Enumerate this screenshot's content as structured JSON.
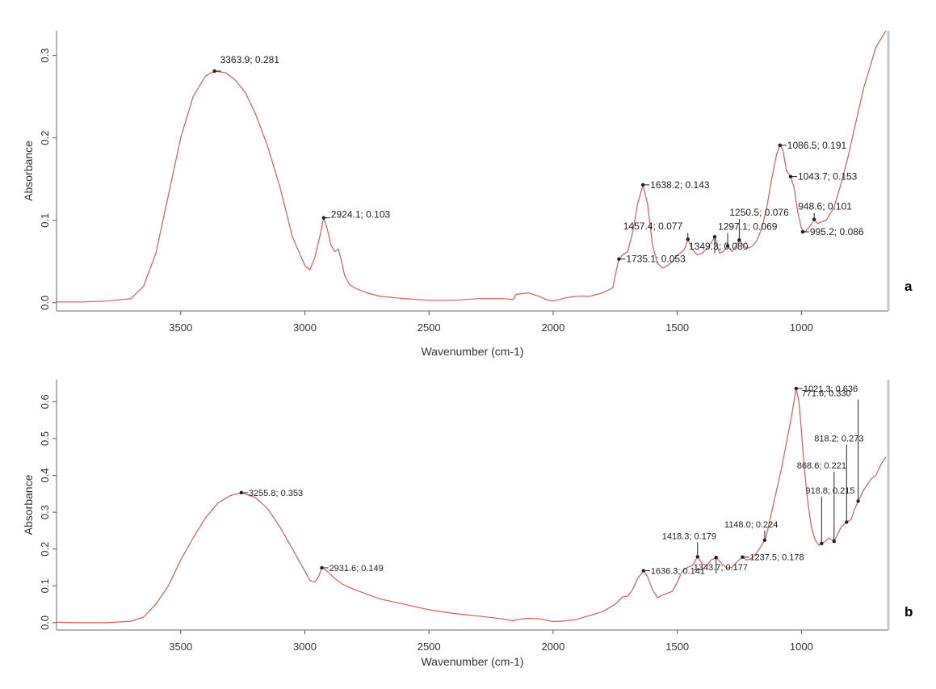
{
  "chart_data": [
    {
      "type": "line",
      "panel_label": "a",
      "xlabel": "Wavenumber (cm-1)",
      "ylabel": "Absorbance",
      "xlim": [
        4000,
        650
      ],
      "ylim": [
        -0.01,
        0.33
      ],
      "x_ticks": [
        3500,
        3000,
        2500,
        2000,
        1500,
        1000
      ],
      "y_ticks": [
        {
          "value": 0.0,
          "label": "0.0"
        },
        {
          "value": 0.1,
          "label": "0.1"
        },
        {
          "value": 0.2,
          "label": "0.2"
        },
        {
          "value": 0.3,
          "label": "0.3"
        }
      ],
      "line_color": "#e05a5a",
      "series": [
        {
          "x": [
            4000,
            3900,
            3800,
            3700,
            3650,
            3600,
            3550,
            3500,
            3450,
            3400,
            3363.9,
            3320,
            3280,
            3240,
            3200,
            3150,
            3100,
            3050,
            3000,
            2980,
            2960,
            2940,
            2924.1,
            2910,
            2895,
            2880,
            2865,
            2852,
            2840,
            2820,
            2800,
            2750,
            2700,
            2600,
            2500,
            2400,
            2300,
            2200,
            2160,
            2150,
            2100,
            2050,
            2030,
            2000,
            1950,
            1900,
            1850,
            1800,
            1760,
            1745,
            1735.1,
            1720,
            1700,
            1680,
            1660,
            1638.2,
            1620,
            1600,
            1580,
            1560,
            1540,
            1520,
            1500,
            1480,
            1470,
            1457.4,
            1440,
            1420,
            1400,
            1380,
            1365,
            1349.3,
            1330,
            1315,
            1297.1,
            1280,
            1265,
            1250.5,
            1235,
            1220,
            1200,
            1180,
            1160,
            1140,
            1120,
            1100,
            1086.5,
            1075,
            1060,
            1043.7,
            1030,
            1015,
            1000,
            995.2,
            985,
            960,
            948.6,
            935,
            920,
            900,
            870,
            840,
            810,
            780,
            750,
            720,
            700,
            680,
            660
          ],
          "y": [
            0.001,
            0.001,
            0.002,
            0.005,
            0.02,
            0.06,
            0.13,
            0.2,
            0.25,
            0.275,
            0.281,
            0.279,
            0.27,
            0.255,
            0.23,
            0.19,
            0.14,
            0.08,
            0.045,
            0.04,
            0.055,
            0.08,
            0.103,
            0.09,
            0.07,
            0.062,
            0.065,
            0.05,
            0.033,
            0.022,
            0.018,
            0.012,
            0.008,
            0.005,
            0.003,
            0.003,
            0.005,
            0.005,
            0.004,
            0.01,
            0.012,
            0.007,
            0.004,
            0.002,
            0.006,
            0.008,
            0.008,
            0.012,
            0.018,
            0.04,
            0.053,
            0.058,
            0.062,
            0.085,
            0.12,
            0.143,
            0.12,
            0.07,
            0.048,
            0.042,
            0.045,
            0.05,
            0.058,
            0.062,
            0.066,
            0.077,
            0.065,
            0.058,
            0.06,
            0.066,
            0.072,
            0.08,
            0.06,
            0.062,
            0.069,
            0.062,
            0.068,
            0.076,
            0.07,
            0.066,
            0.068,
            0.075,
            0.09,
            0.115,
            0.15,
            0.18,
            0.191,
            0.186,
            0.16,
            0.153,
            0.14,
            0.11,
            0.09,
            0.088,
            0.086,
            0.095,
            0.101,
            0.096,
            0.098,
            0.1,
            0.115,
            0.145,
            0.18,
            0.22,
            0.26,
            0.29,
            0.31,
            0.32,
            0.33
          ]
        }
      ],
      "annotations": [
        {
          "text": "3363.9; 0.281",
          "x": 3363.9,
          "y": 0.281
        },
        {
          "text": "2924.1; 0.103",
          "x": 2924.1,
          "y": 0.103
        },
        {
          "text": "1735.1; 0.053",
          "x": 1735.1,
          "y": 0.053
        },
        {
          "text": "1638.2; 0.143",
          "x": 1638.2,
          "y": 0.143
        },
        {
          "text": "1457.4; 0.077",
          "x": 1457.4,
          "y": 0.077
        },
        {
          "text": "1349.3; 0.080",
          "x": 1349.3,
          "y": 0.08
        },
        {
          "text": "1297.1; 0.069",
          "x": 1297.1,
          "y": 0.069
        },
        {
          "text": "1250.5; 0.076",
          "x": 1250.5,
          "y": 0.076
        },
        {
          "text": "1086.5; 0.191",
          "x": 1086.5,
          "y": 0.191
        },
        {
          "text": "1043.7; 0.153",
          "x": 1043.7,
          "y": 0.153
        },
        {
          "text": "948.6; 0.101",
          "x": 948.6,
          "y": 0.101
        },
        {
          "text": "995.2; 0.086",
          "x": 995.2,
          "y": 0.086
        }
      ]
    },
    {
      "type": "line",
      "panel_label": "b",
      "xlabel": "Wavenumber (cm-1)",
      "ylabel": "Absorbance",
      "xlim": [
        4000,
        650
      ],
      "ylim": [
        -0.02,
        0.66
      ],
      "x_ticks": [
        3500,
        3000,
        2500,
        2000,
        1500,
        1000
      ],
      "y_ticks": [
        {
          "value": 0.0,
          "label": "0.0"
        },
        {
          "value": 0.1,
          "label": "0.1"
        },
        {
          "value": 0.2,
          "label": "0.2"
        },
        {
          "value": 0.3,
          "label": "0.3"
        },
        {
          "value": 0.4,
          "label": "0.4"
        },
        {
          "value": 0.5,
          "label": "0.5"
        },
        {
          "value": 0.6,
          "label": "0.6"
        }
      ],
      "line_color": "#e05a5a",
      "series": [
        {
          "x": [
            4000,
            3900,
            3800,
            3700,
            3650,
            3600,
            3550,
            3500,
            3450,
            3400,
            3350,
            3300,
            3255.8,
            3200,
            3150,
            3100,
            3050,
            3000,
            2980,
            2960,
            2945,
            2931.6,
            2910,
            2880,
            2850,
            2800,
            2700,
            2600,
            2500,
            2400,
            2300,
            2200,
            2160,
            2150,
            2100,
            2050,
            2000,
            1950,
            1900,
            1850,
            1800,
            1750,
            1720,
            1700,
            1680,
            1660,
            1636.3,
            1620,
            1600,
            1580,
            1560,
            1540,
            1520,
            1500,
            1480,
            1460,
            1440,
            1418.3,
            1400,
            1380,
            1365,
            1343.7,
            1320,
            1300,
            1280,
            1260,
            1237.5,
            1220,
            1200,
            1180,
            1160,
            1148,
            1140,
            1120,
            1100,
            1080,
            1060,
            1040,
            1021.3,
            1010,
            1000,
            990,
            975,
            960,
            945,
            930,
            918.8,
            905,
            890,
            868.6,
            855,
            840,
            818.2,
            800,
            785,
            771.6,
            750,
            720,
            700,
            680,
            660
          ],
          "y": [
            0.001,
            0.0,
            0.0,
            0.004,
            0.015,
            0.05,
            0.1,
            0.17,
            0.23,
            0.285,
            0.325,
            0.345,
            0.353,
            0.34,
            0.31,
            0.26,
            0.2,
            0.14,
            0.115,
            0.11,
            0.125,
            0.149,
            0.14,
            0.12,
            0.105,
            0.09,
            0.065,
            0.05,
            0.035,
            0.025,
            0.018,
            0.01,
            0.005,
            0.008,
            0.012,
            0.01,
            0.003,
            0.005,
            0.01,
            0.02,
            0.03,
            0.05,
            0.07,
            0.072,
            0.09,
            0.12,
            0.141,
            0.125,
            0.09,
            0.068,
            0.075,
            0.08,
            0.085,
            0.11,
            0.14,
            0.15,
            0.155,
            0.179,
            0.16,
            0.155,
            0.17,
            0.177,
            0.16,
            0.148,
            0.15,
            0.165,
            0.178,
            0.17,
            0.175,
            0.19,
            0.21,
            0.224,
            0.24,
            0.3,
            0.36,
            0.42,
            0.49,
            0.56,
            0.636,
            0.6,
            0.52,
            0.43,
            0.33,
            0.26,
            0.225,
            0.21,
            0.215,
            0.22,
            0.23,
            0.221,
            0.24,
            0.26,
            0.273,
            0.28,
            0.31,
            0.33,
            0.36,
            0.39,
            0.4,
            0.43,
            0.45
          ]
        }
      ],
      "annotations": [
        {
          "text": "3255.8; 0.353",
          "x": 3255.8,
          "y": 0.353
        },
        {
          "text": "2931.6; 0.149",
          "x": 2931.6,
          "y": 0.149
        },
        {
          "text": "1636.3; 0.141",
          "x": 1636.3,
          "y": 0.141
        },
        {
          "text": "1418.3; 0.179",
          "x": 1418.3,
          "y": 0.179
        },
        {
          "text": "1343.7; 0.177",
          "x": 1343.7,
          "y": 0.177
        },
        {
          "text": "1237.5; 0.178",
          "x": 1237.5,
          "y": 0.178
        },
        {
          "text": "1148.0; 0.224",
          "x": 1148.0,
          "y": 0.224
        },
        {
          "text": "1021.3; 0.636",
          "x": 1021.3,
          "y": 0.636
        },
        {
          "text": "918.8; 0.215",
          "x": 918.8,
          "y": 0.215
        },
        {
          "text": "868.6; 0.221",
          "x": 868.6,
          "y": 0.221
        },
        {
          "text": "818.2; 0.273",
          "x": 818.2,
          "y": 0.273
        },
        {
          "text": "771.6; 0.330",
          "x": 771.6,
          "y": 0.33
        }
      ]
    }
  ]
}
